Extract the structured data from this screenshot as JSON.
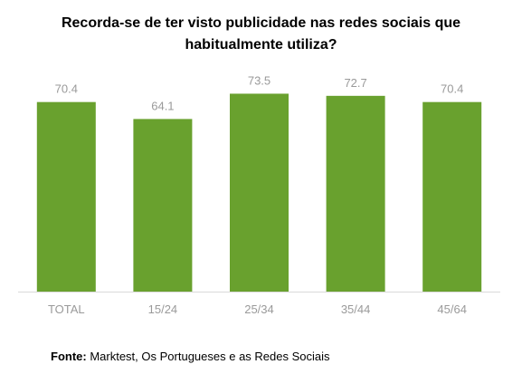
{
  "chart_data": {
    "type": "bar",
    "title_line1": "Recorda-se de ter visto publicidade nas redes sociais que",
    "title_line2": "habitualmente utiliza?",
    "categories": [
      "TOTAL",
      "15/24",
      "25/34",
      "35/44",
      "45/64"
    ],
    "values": [
      70.4,
      64.1,
      73.5,
      72.7,
      70.4
    ],
    "value_labels": [
      "70.4",
      "64.1",
      "73.5",
      "72.7",
      "70.4"
    ],
    "ylim": [
      0,
      75
    ],
    "grid": false,
    "legend": "none",
    "bar_color": "#69a12e",
    "axis_color": "#d9d9d9",
    "label_color": "#9a9a9a"
  },
  "source": {
    "prefix": "Fonte:",
    "text": " Marktest, Os Portugueses e as Redes Sociais"
  }
}
